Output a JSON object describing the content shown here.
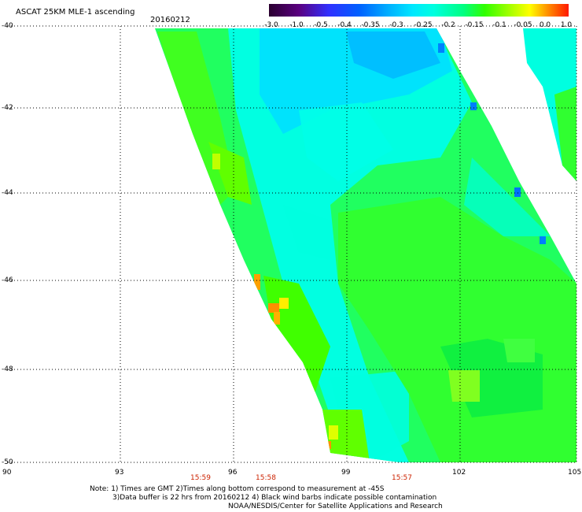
{
  "header": {
    "title": "ASCAT 25KM MLE-1 ascending",
    "date": "20160212"
  },
  "colorbar": {
    "labels": [
      "-3.0",
      "-1.0",
      "-0.5",
      "-0.4",
      "-0.35",
      "-0.3",
      "-0.25",
      "-0.2",
      "-0.15",
      "-0.1",
      "-0.05",
      "0.0",
      "1.0"
    ],
    "colors": [
      "#2a0030",
      "#5a0080",
      "#2020ff",
      "#0060ff",
      "#00a0ff",
      "#00d8ff",
      "#00ffe0",
      "#00ff80",
      "#40ff00",
      "#a0ff00",
      "#ffff00",
      "#ff9000",
      "#ff2000"
    ]
  },
  "axes": {
    "latitudes": [
      "-40",
      "-42",
      "-44",
      "-46",
      "-48",
      "-50"
    ],
    "longitudes": [
      "90",
      "93",
      "96",
      "99",
      "102",
      "105"
    ],
    "times": [
      "15:59",
      "15:58",
      "15:57"
    ]
  },
  "notes": [
    "Note: 1) Times are GMT 2)Times along bottom correspond to measurement at -45S",
    "3)Data buffer is 22 hrs from 20160212 4) Black wind barbs indicate possible contamination",
    "NOAA/NESDIS/Center for Satellite Applications and Research"
  ]
}
